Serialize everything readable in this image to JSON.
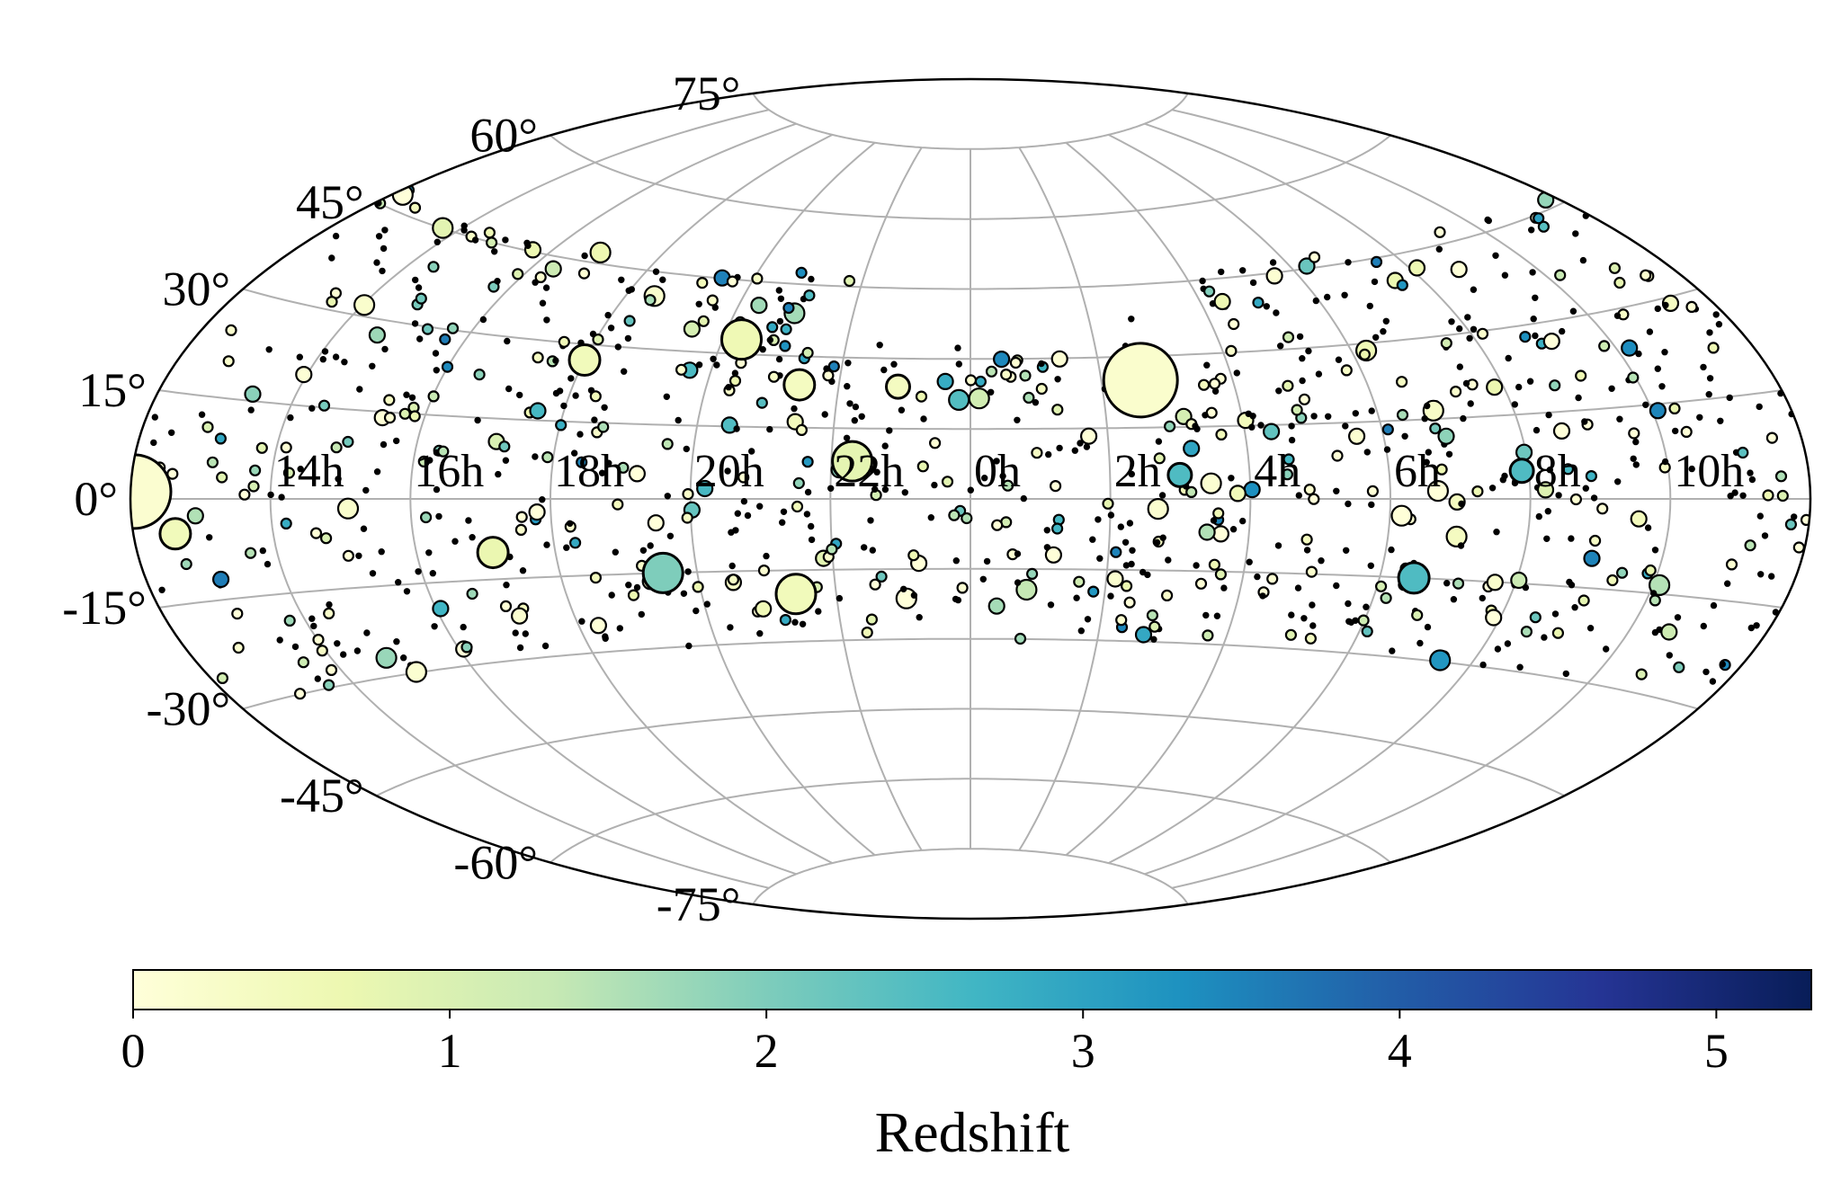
{
  "chart_data": {
    "type": "scatter",
    "projection": "aitoff",
    "title": "",
    "grid": true,
    "ra_tick_labels": [
      "14h",
      "16h",
      "18h",
      "20h",
      "22h",
      "0h",
      "2h",
      "4h",
      "6h",
      "8h",
      "10h"
    ],
    "ra_tick_hours": [
      14,
      16,
      18,
      20,
      22,
      0,
      2,
      4,
      6,
      8,
      10
    ],
    "dec_tick_labels": [
      "75°",
      "60°",
      "45°",
      "30°",
      "15°",
      "0°",
      "-15°",
      "-30°",
      "-45°",
      "-60°",
      "-75°"
    ],
    "dec_tick_values": [
      75,
      60,
      45,
      30,
      15,
      0,
      -15,
      -30,
      -45,
      -60,
      -75
    ],
    "colorbar": {
      "label": "Redshift",
      "range": [
        0,
        5.3
      ],
      "tick_labels": [
        "0",
        "1",
        "2",
        "3",
        "4",
        "5"
      ],
      "tick_values": [
        0,
        1,
        2,
        3,
        4,
        5
      ],
      "colormap": [
        "#ffffd9",
        "#edf8b1",
        "#c7e9b4",
        "#7fcdbb",
        "#41b6c4",
        "#1d91c0",
        "#225ea8",
        "#253494",
        "#081d58"
      ],
      "position": "bottom"
    },
    "highlighted_points": [
      {
        "ra_hours": 12.05,
        "dec": 1,
        "z": 0.15,
        "size": 6
      },
      {
        "ra_hours": 12.6,
        "dec": -5,
        "z": 0.5,
        "size": 3
      },
      {
        "ra_hours": 17.1,
        "dec": -10,
        "z": 0.7,
        "size": 3
      },
      {
        "ra_hours": 18.0,
        "dec": 27,
        "z": 0.5,
        "size": 3
      },
      {
        "ra_hours": 20.3,
        "dec": 33,
        "z": 0.6,
        "size": 4
      },
      {
        "ra_hours": 19.5,
        "dec": -15,
        "z": 2.0,
        "size": 4
      },
      {
        "ra_hours": 21.4,
        "dec": -20,
        "z": 0.5,
        "size": 4
      },
      {
        "ra_hours": 22.3,
        "dec": 8,
        "z": 0.8,
        "size": 4
      },
      {
        "ra_hours": 21.4,
        "dec": 24,
        "z": 0.4,
        "size": 3
      },
      {
        "ra_hours": 2.6,
        "dec": 25,
        "z": 0.2,
        "size": 6
      },
      {
        "ra_hours": 22.9,
        "dec": 24,
        "z": 0.4,
        "size": 2
      },
      {
        "ra_hours": 6.5,
        "dec": -15,
        "z": 2.5,
        "size": 3
      },
      {
        "ra_hours": 7.9,
        "dec": 5,
        "z": 2.5,
        "size": 2
      },
      {
        "ra_hours": 3.0,
        "dec": 5,
        "z": 2.5,
        "size": 2
      }
    ],
    "note_points": "Approximately 1000 sources distributed across the sky between about -30° and +48° declination; most have redshift below 1 (pale yellow), some between 1 and 3 (green to teal-blue)."
  }
}
